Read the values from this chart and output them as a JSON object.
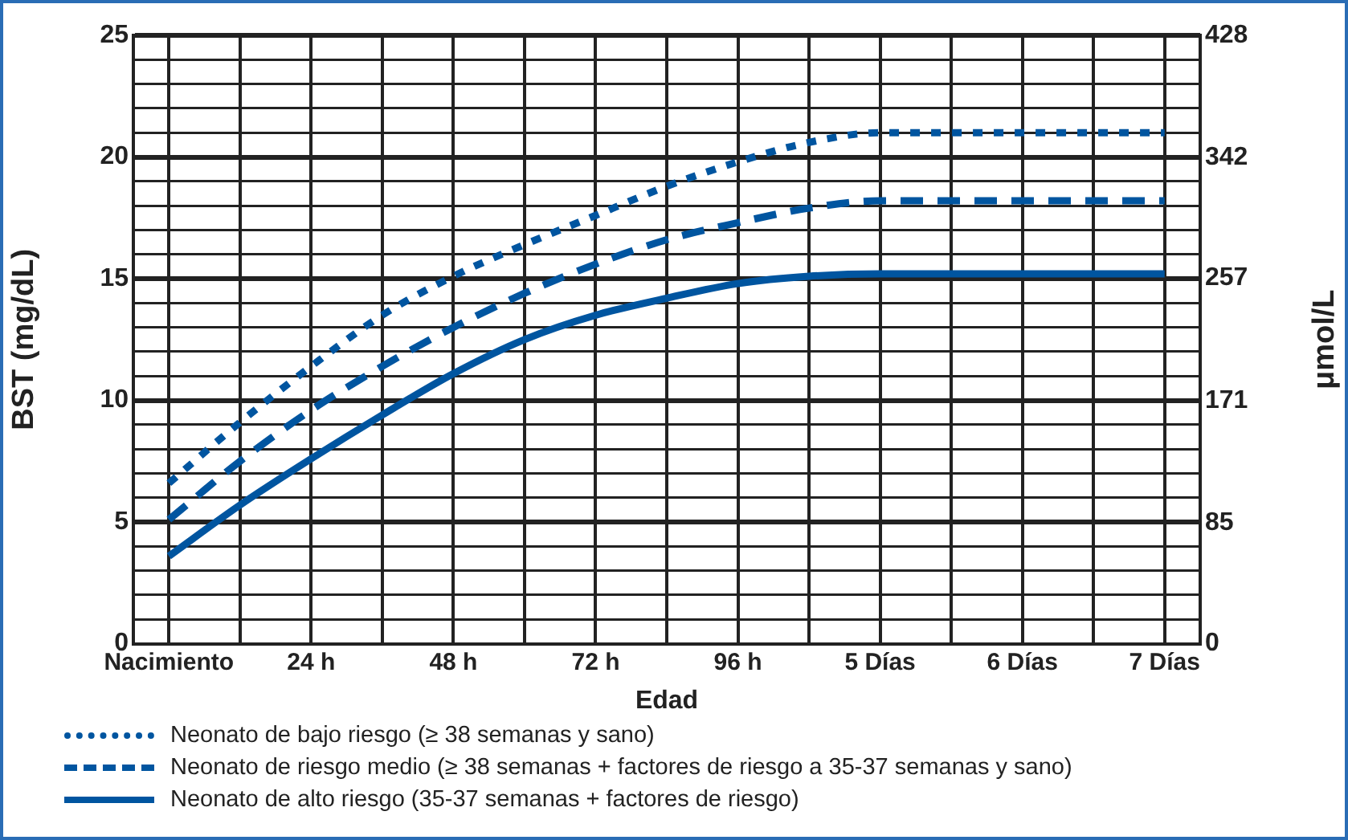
{
  "chart_data": {
    "type": "line",
    "xlabel": "Edad",
    "ylabel": "BST (mg/dL)",
    "y2label": "μmol/L",
    "categories": [
      "Nacimiento",
      null,
      "24 h",
      null,
      "48 h",
      null,
      "72 h",
      null,
      "96 h",
      null,
      "5 Días",
      null,
      "6 Días",
      null,
      "7 Días"
    ],
    "ylim": [
      0,
      25
    ],
    "yticks": [
      0,
      {
        "value": 1,
        "label": null
      },
      {
        "value": 2,
        "label": null
      },
      {
        "value": 3,
        "label": null
      },
      {
        "value": 4,
        "label": null
      },
      5,
      {
        "value": 6,
        "label": null
      },
      {
        "value": 7,
        "label": null
      },
      {
        "value": 8,
        "label": null
      },
      {
        "value": 9,
        "label": null
      },
      10,
      {
        "value": 11,
        "label": null
      },
      {
        "value": 12,
        "label": null
      },
      {
        "value": 13,
        "label": null
      },
      {
        "value": 14,
        "label": null
      },
      15,
      {
        "value": 16,
        "label": null
      },
      {
        "value": 17,
        "label": null
      },
      {
        "value": 18,
        "label": null
      },
      {
        "value": 19,
        "label": null
      },
      20,
      {
        "value": 21,
        "label": null
      },
      {
        "value": 22,
        "label": null
      },
      {
        "value": 23,
        "label": null
      },
      {
        "value": 24,
        "label": null
      },
      25
    ],
    "y2lim": [
      0,
      428
    ],
    "y2ticks": [
      0,
      85,
      171,
      257,
      342,
      428
    ],
    "grid": true,
    "legend": "bottom",
    "marker": "none",
    "series": [
      {
        "name": "Neonato de bajo riesgo (≥ 38 semanas y sano)",
        "color": "#0055a0",
        "line_style": "dotted",
        "values": [
          6.6,
          9.1,
          11.4,
          13.5,
          15.1,
          16.4,
          17.6,
          18.8,
          19.8,
          20.6,
          21.0,
          21.0,
          21.0,
          21.0,
          21.0
        ]
      },
      {
        "name": "Neonato de riesgo medio (≥ 38 semanas + factores de riesgo a 35-37 semanas y sano)",
        "color": "#0055a0",
        "line_style": "dashed",
        "values": [
          5.1,
          7.5,
          9.6,
          11.4,
          13.0,
          14.4,
          15.6,
          16.6,
          17.3,
          17.9,
          18.2,
          18.2,
          18.2,
          18.2,
          18.2
        ]
      },
      {
        "name": "Neonato de alto riesgo (35-37 semanas + factores de riesgo)",
        "color": "#0055a0",
        "line_style": "solid",
        "values": [
          3.6,
          5.7,
          7.6,
          9.4,
          11.1,
          12.5,
          13.5,
          14.2,
          14.8,
          15.1,
          15.2,
          15.2,
          15.2,
          15.2,
          15.2
        ]
      }
    ]
  }
}
